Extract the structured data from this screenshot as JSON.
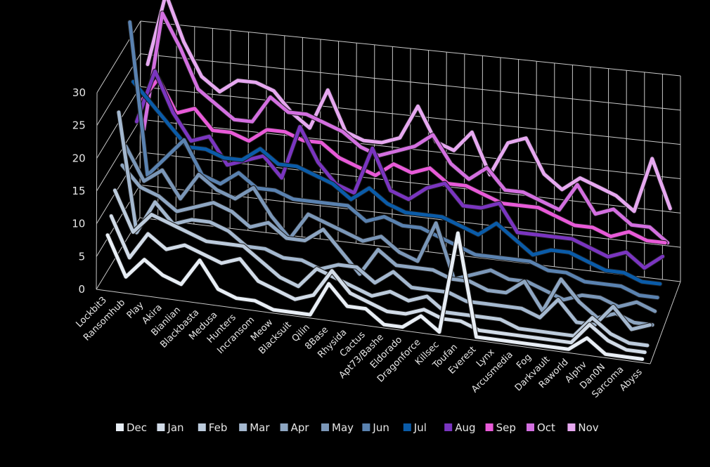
{
  "chart_data": {
    "type": "line",
    "subtype": "3d-line",
    "title": "",
    "xlabel": "",
    "ylabel": "",
    "ylim": [
      0,
      30
    ],
    "y_ticks": [
      "0",
      "5",
      "10",
      "15",
      "20",
      "25",
      "30"
    ],
    "grid": true,
    "legend_position": "bottom",
    "categories": [
      "Lockbit3",
      "Ransomhub",
      "Play",
      "Akira",
      "Bianlian",
      "Blackbasta",
      "Medusa",
      "Hunters",
      "Incransom",
      "Meow",
      "Blacksuit",
      "Qilin",
      "8Base",
      "Rhysida",
      "Cactus",
      "Apt73/Bashe",
      "Eldorado",
      "Dragonforce",
      "Killsec",
      "Toufan",
      "Everest",
      "Lynx",
      "Arcusmedia",
      "Fog",
      "Darkvault",
      "Raworld",
      "Alphv",
      "Dan0N",
      "Sarcoma",
      "Abyss"
    ],
    "series": [
      {
        "name": "Dec",
        "color": "#e8eef5",
        "values": [
          8,
          2,
          5,
          3,
          2,
          6,
          2,
          1,
          1,
          0,
          0,
          0,
          5,
          2,
          2,
          0,
          0,
          2,
          0,
          15,
          0,
          0,
          0,
          0,
          0,
          0,
          2,
          0,
          0,
          0
        ]
      },
      {
        "name": "Jan",
        "color": "#d2dce8",
        "values": [
          10,
          4,
          8,
          6,
          7,
          6,
          5,
          6,
          3,
          2,
          1,
          2,
          6,
          3,
          2,
          1,
          1,
          2,
          1,
          1,
          0,
          0,
          0,
          0,
          0,
          0,
          3,
          1,
          0,
          0
        ]
      },
      {
        "name": "Feb",
        "color": "#bccbdc",
        "values": [
          13,
          7,
          10,
          9,
          8,
          7,
          7,
          7,
          5,
          3,
          2,
          5,
          4,
          3,
          2,
          3,
          2,
          3,
          1,
          1,
          1,
          1,
          0,
          0,
          0,
          0,
          3,
          1,
          0,
          0
        ]
      },
      {
        "name": "Mar",
        "color": "#a4b8cf",
        "values": [
          24,
          6,
          11,
          8,
          9,
          9,
          8,
          6,
          6,
          5,
          5,
          4,
          5,
          5,
          3,
          5,
          3,
          3,
          3,
          2,
          2,
          2,
          2,
          1,
          4,
          1,
          1,
          4,
          1,
          2
        ]
      },
      {
        "name": "Apr",
        "color": "#8ea6c2",
        "values": [
          15,
          12,
          11,
          9,
          10,
          11,
          10,
          8,
          9,
          7,
          7,
          9,
          6,
          3,
          7,
          5,
          5,
          5,
          4,
          4,
          3,
          3,
          5,
          1,
          6,
          3,
          1,
          2,
          1,
          1
        ]
      },
      {
        "name": "May",
        "color": "#7b97b8",
        "values": [
          17,
          12,
          14,
          10,
          14,
          12,
          11,
          13,
          9,
          6,
          10,
          9,
          8,
          7,
          8,
          6,
          5,
          11,
          3,
          4,
          5,
          4,
          4,
          3,
          2,
          3,
          3,
          2,
          3,
          2
        ]
      },
      {
        "name": "Jun",
        "color": "#5a82b0",
        "values": [
          35,
          12,
          15,
          18,
          13,
          12,
          14,
          12,
          12,
          11,
          11,
          11,
          11,
          9,
          10,
          9,
          9,
          8,
          7,
          6,
          6,
          6,
          6,
          5,
          5,
          4,
          4,
          4,
          3,
          3
        ]
      },
      {
        "name": "Jul",
        "color": "#0a5ba8",
        "values": [
          25,
          22,
          19,
          16,
          16,
          15,
          15,
          17,
          15,
          15,
          14,
          13,
          11,
          13,
          11,
          10,
          10,
          10,
          9,
          8,
          10,
          8,
          6,
          7,
          7,
          6,
          5,
          5,
          4,
          4
        ]
      },
      {
        "name": "Aug",
        "color": "#7a35c0",
        "values": [
          18,
          26,
          20,
          16,
          17,
          13,
          14,
          15,
          12,
          20,
          15,
          12,
          11,
          18,
          12,
          11,
          13,
          14,
          11,
          11,
          12,
          8,
          8,
          8,
          8,
          7,
          6,
          7,
          5,
          7
        ]
      },
      {
        "name": "Sep",
        "color": "#e85ad8",
        "values": [
          20,
          24,
          19,
          20,
          17,
          17,
          16,
          18,
          18,
          17,
          17,
          15,
          14,
          13,
          15,
          14,
          15,
          13,
          13,
          12,
          11,
          11,
          11,
          10,
          9,
          9,
          8,
          9,
          8,
          8
        ]
      },
      {
        "name": "Oct",
        "color": "#d36fe0",
        "values": [
          15,
          33,
          28,
          22,
          20,
          18,
          18,
          22,
          20,
          20,
          19,
          18,
          16,
          15,
          16,
          17,
          19,
          15,
          13,
          15,
          12,
          12,
          11,
          10,
          14,
          10,
          11,
          9,
          9,
          7
        ]
      },
      {
        "name": "Nov",
        "color": "#e6a8f0",
        "values": [
          24,
          35,
          28,
          23,
          21,
          23,
          23,
          22,
          19,
          17,
          23,
          17,
          16,
          16,
          17,
          22,
          17,
          16,
          19,
          13,
          18,
          19,
          14,
          12,
          14,
          13,
          12,
          10,
          18,
          11
        ]
      }
    ]
  }
}
